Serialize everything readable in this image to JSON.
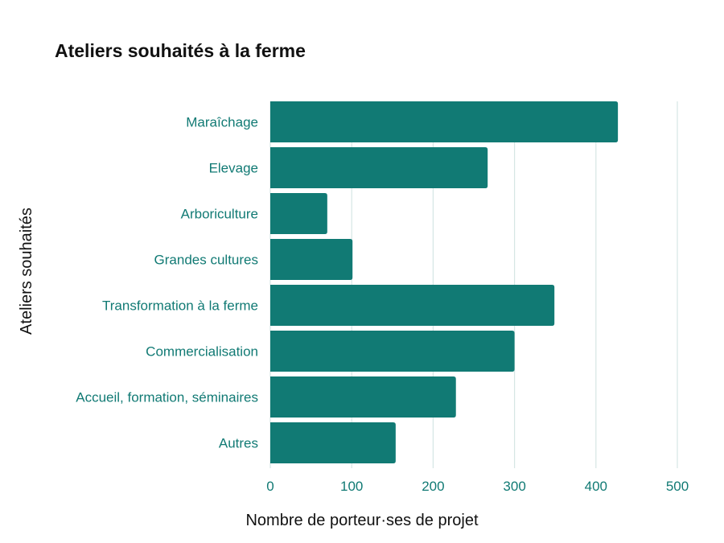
{
  "chart_data": {
    "type": "bar",
    "orientation": "horizontal",
    "title": "Ateliers souhaités à la ferme",
    "xlabel": "Nombre de porteur·ses de projet",
    "ylabel": "Ateliers souhaités",
    "categories": [
      "Maraîchage",
      "Elevage",
      "Arboriculture",
      "Grandes cultures",
      "Transformation à la ferme",
      "Commercialisation",
      "Accueil, formation, séminaires",
      "Autres"
    ],
    "values": [
      427,
      267,
      70,
      101,
      349,
      300,
      228,
      154
    ],
    "xlim": [
      0,
      500
    ],
    "xticks": [
      0,
      100,
      200,
      300,
      400,
      500
    ],
    "grid": "vertical",
    "legend": "none",
    "colors": {
      "bar": "#117a74",
      "labels": "#117a74",
      "grid": "#d5e6e4"
    }
  }
}
